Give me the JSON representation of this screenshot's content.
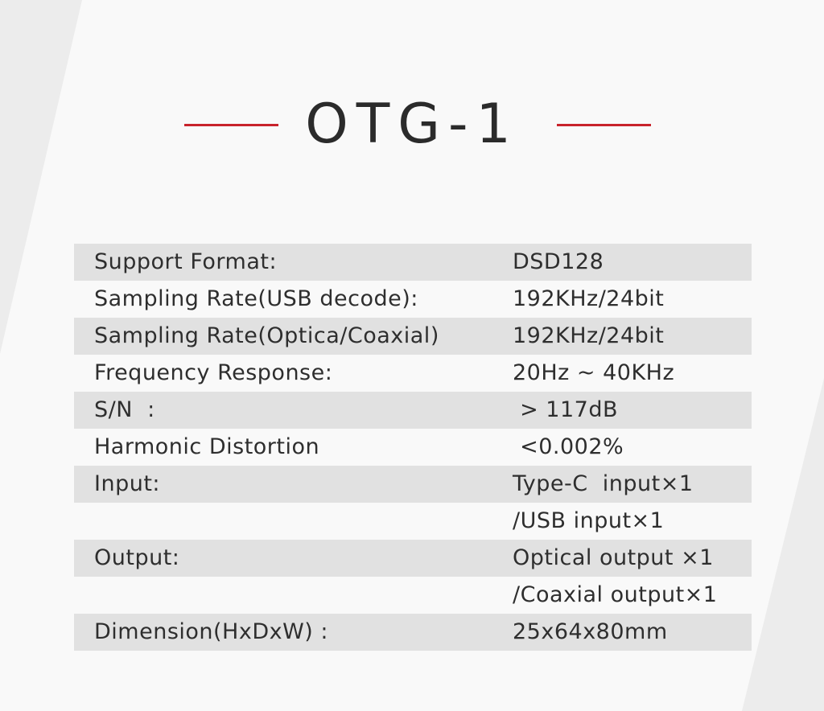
{
  "title": "OTG-1",
  "colors": {
    "accent": "#c8232c",
    "band": "#e1e1e1",
    "background": "#f9f9f9",
    "side_shape": "#ececec"
  },
  "specs": [
    {
      "label": "Support Format:",
      "value": "DSD128"
    },
    {
      "label": "Sampling Rate(USB decode):",
      "value": "192KHz/24bit"
    },
    {
      "label": "Sampling Rate(Optica/Coaxial)",
      "value": "192KHz/24bit"
    },
    {
      "label": "Frequency Response:",
      "value": "20Hz ~ 40KHz"
    },
    {
      "label": "S/N  :",
      "value": " > 117dB"
    },
    {
      "label": "Harmonic Distortion",
      "value": " <0.002%"
    },
    {
      "label": "Input:",
      "value": "Type-C  input×1"
    },
    {
      "label": "",
      "value": "/USB input×1"
    },
    {
      "label": "Output:",
      "value": "Optical output ×1"
    },
    {
      "label": "",
      "value": "/Coaxial output×1"
    },
    {
      "label": "Dimension(HxDxW) :",
      "value": "25x64x80mm"
    }
  ]
}
